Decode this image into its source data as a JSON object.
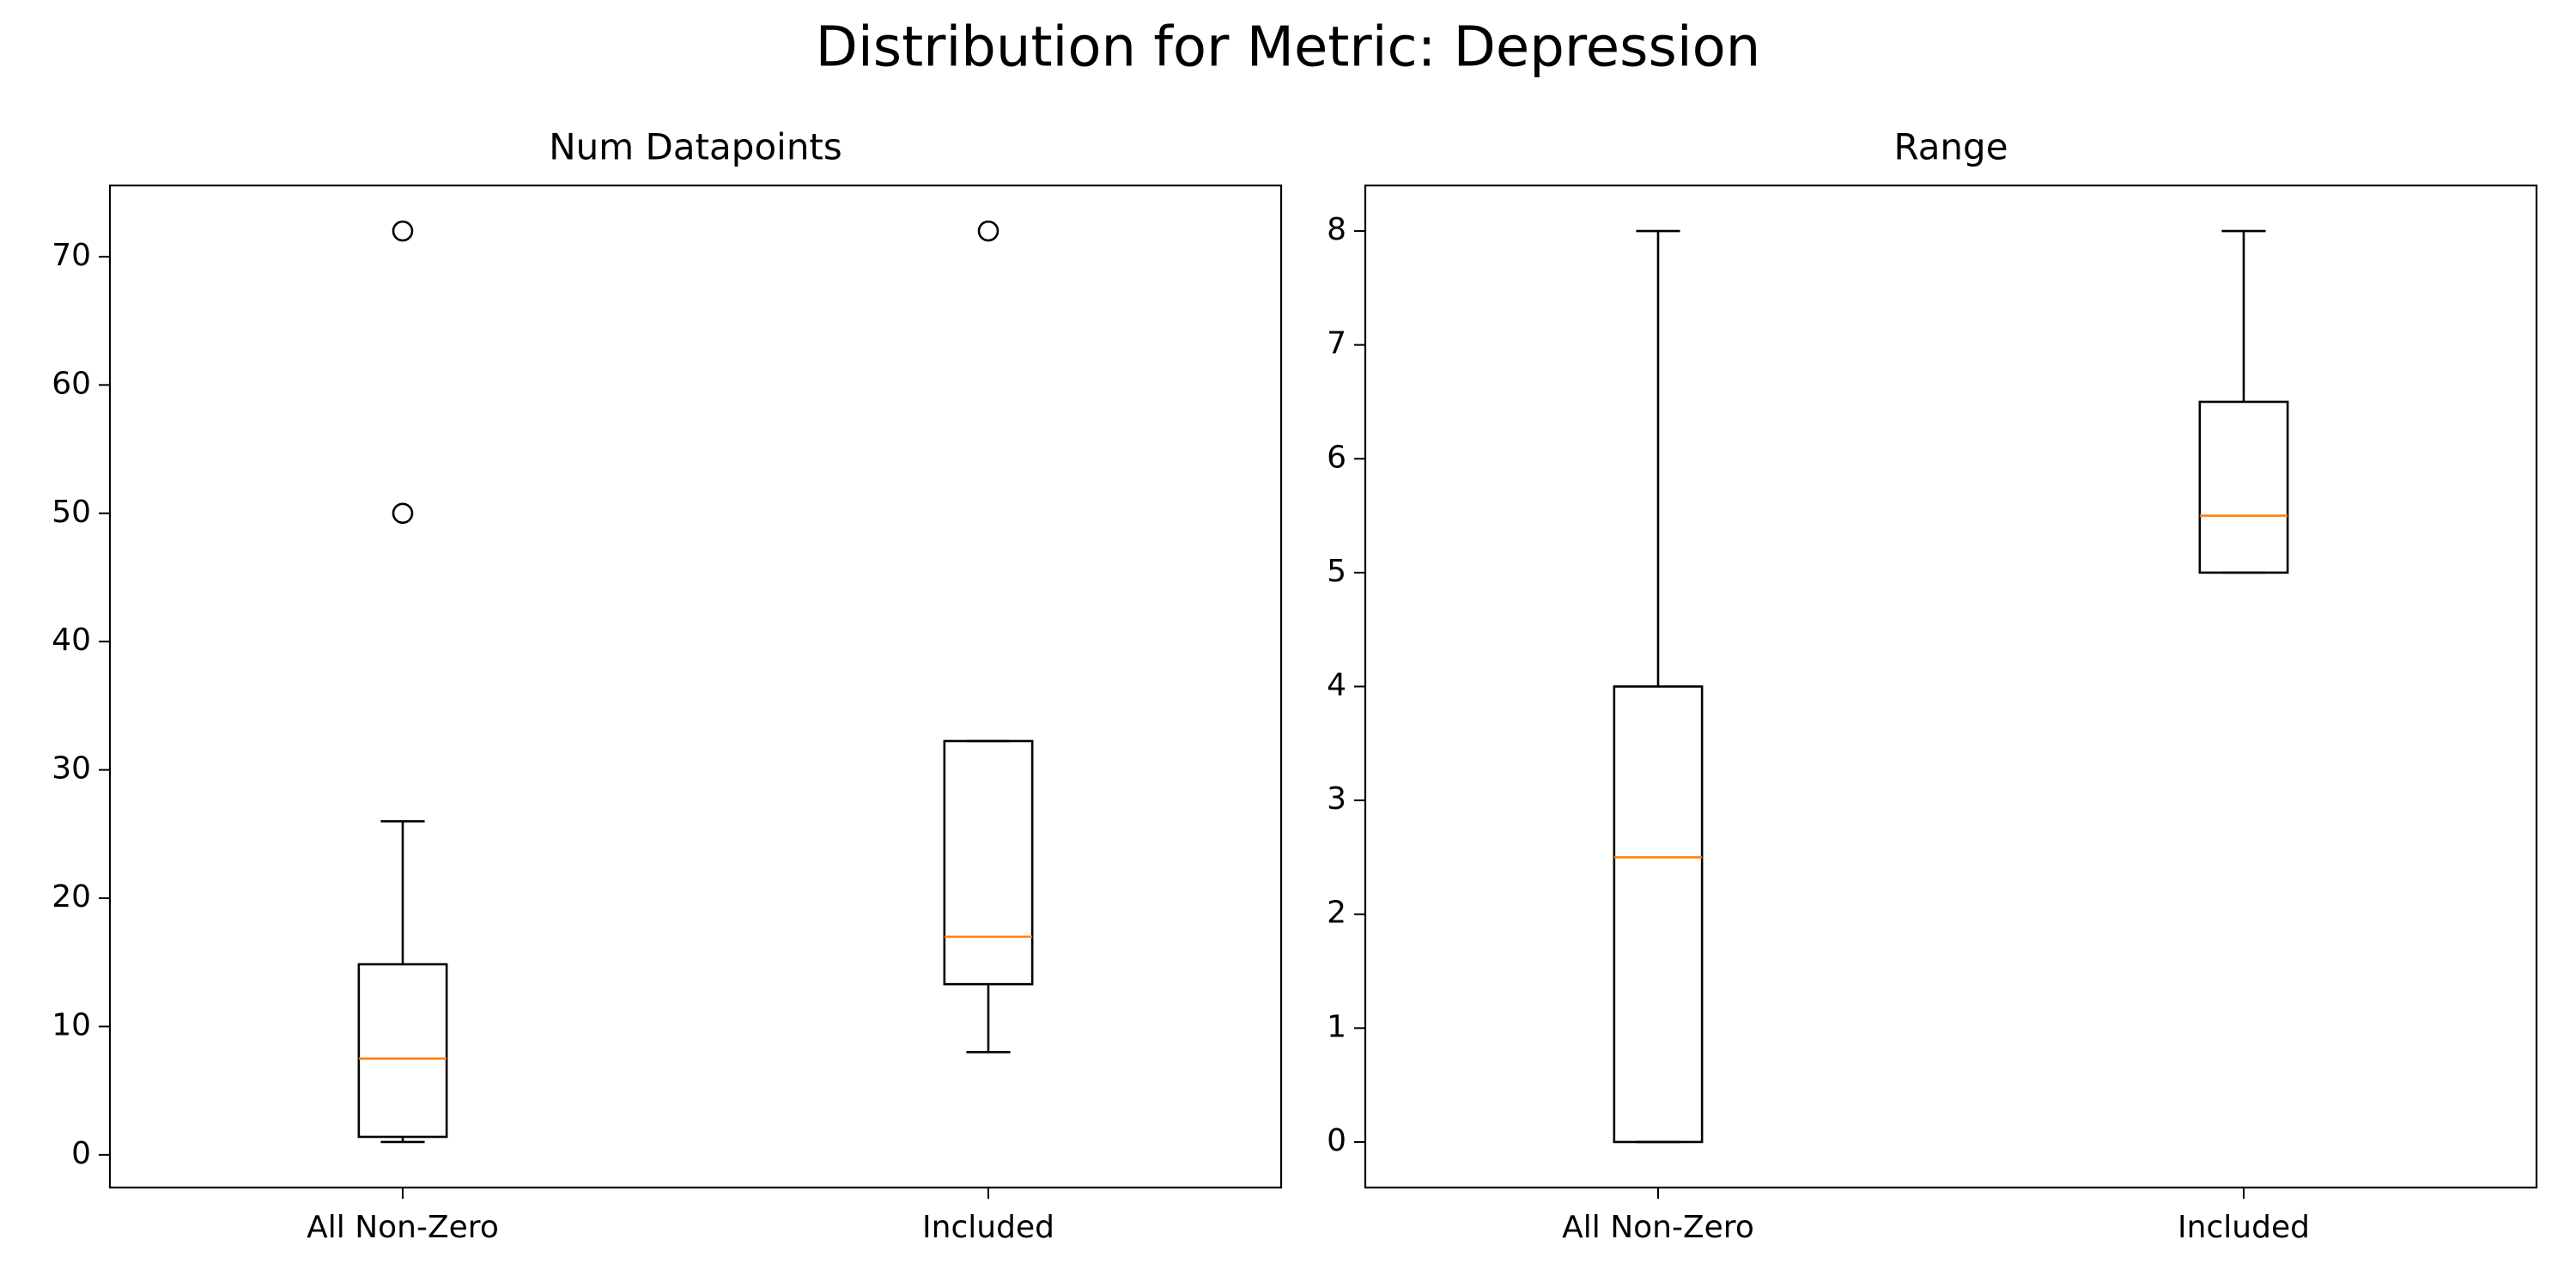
{
  "title": "Distribution for Metric: Depression",
  "chart_data": [
    {
      "type": "box",
      "title": "Num Datapoints",
      "categories": [
        "All Non-Zero",
        "Included"
      ],
      "box_color": "#000000",
      "median_color": "#ff7f0e",
      "boxes": [
        {
          "whislo": 1,
          "q1": 1.4,
          "med": 7.5,
          "q3": 14.85,
          "whishi": 26,
          "fliers": [
            50,
            72
          ]
        },
        {
          "whislo": 8,
          "q1": 13.3,
          "med": 17,
          "q3": 32.25,
          "whishi": 32.25,
          "fliers": [
            72
          ]
        }
      ],
      "ylim": [
        -2.55,
        75.55
      ],
      "yticks": [
        0,
        10,
        20,
        30,
        40,
        50,
        60,
        70
      ]
    },
    {
      "type": "box",
      "title": "Range",
      "categories": [
        "All Non-Zero",
        "Included"
      ],
      "box_color": "#000000",
      "median_color": "#ff7f0e",
      "boxes": [
        {
          "whislo": 0,
          "q1": 0,
          "med": 2.5,
          "q3": 4,
          "whishi": 8,
          "fliers": []
        },
        {
          "whislo": 5,
          "q1": 5,
          "med": 5.5,
          "q3": 6.5,
          "whishi": 8,
          "fliers": []
        }
      ],
      "ylim": [
        -0.4,
        8.4
      ],
      "yticks": [
        0,
        1,
        2,
        3,
        4,
        5,
        6,
        7,
        8
      ]
    }
  ]
}
